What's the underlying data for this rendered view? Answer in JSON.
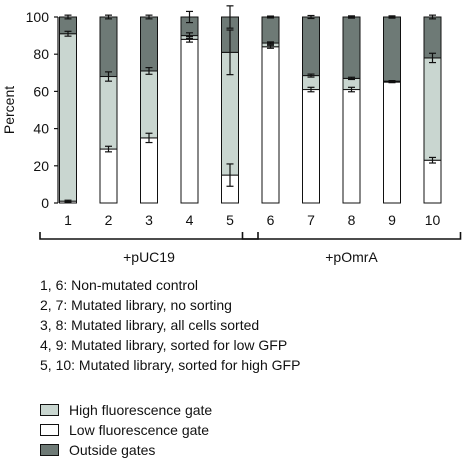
{
  "chart_data": {
    "type": "bar",
    "stacked": true,
    "ylabel": "Percent",
    "ylim": [
      0,
      100
    ],
    "yticks": [
      0,
      20,
      40,
      60,
      80,
      100
    ],
    "categories": [
      "1",
      "2",
      "3",
      "4",
      "5",
      "6",
      "7",
      "8",
      "9",
      "10"
    ],
    "series": [
      {
        "name": "Low fluorescence gate",
        "color": "#ffffff",
        "values": [
          1,
          29,
          35,
          88,
          15,
          84,
          61,
          61,
          65,
          23
        ],
        "errors": [
          0.5,
          1.5,
          2.5,
          1.5,
          6,
          0.8,
          1.2,
          1.2,
          0.3,
          1.5
        ]
      },
      {
        "name": "High fluorescence gate",
        "color": "#c9d6d0",
        "values": [
          90,
          39,
          36,
          2,
          66,
          2,
          7.5,
          6,
          0.5,
          55
        ],
        "errors": [
          1.3,
          2.5,
          1.8,
          1.5,
          12,
          0.6,
          0.8,
          0.6,
          0.3,
          2.5
        ]
      },
      {
        "name": "Outside gates",
        "color": "#6e7a76",
        "values": [
          9,
          32,
          29,
          10,
          19,
          14,
          31.5,
          33,
          34.5,
          22
        ],
        "errors": [
          1,
          1,
          1,
          3,
          6,
          0.5,
          0.8,
          0.6,
          0.6,
          1
        ]
      }
    ],
    "groups": [
      {
        "label": "+pUC19",
        "from": 0,
        "to": 4
      },
      {
        "label": "+pOmrA",
        "from": 5,
        "to": 9
      }
    ]
  },
  "notes": [
    "1, 6: Non-mutated control",
    "2, 7: Mutated library, no sorting",
    "3, 8: Mutated library, all cells sorted",
    "4, 9: Mutated library, sorted for low GFP",
    "5, 10: Mutated library, sorted for high GFP"
  ],
  "legend": [
    {
      "label": "High fluorescence gate",
      "color": "#c9d6d0"
    },
    {
      "label": "Low fluorescence gate",
      "color": "#ffffff"
    },
    {
      "label": "Outside gates",
      "color": "#6e7a76"
    }
  ]
}
